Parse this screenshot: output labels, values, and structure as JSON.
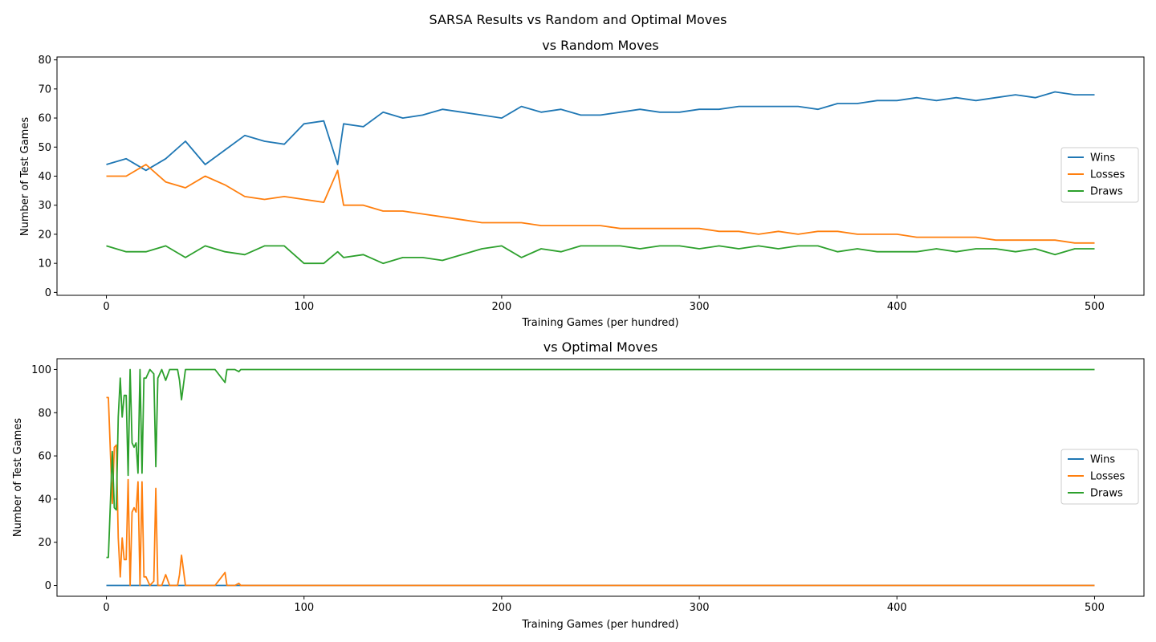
{
  "figure": {
    "suptitle": "SARSA Results vs Random and Optimal Moves"
  },
  "colors": {
    "wins": "#1f77b4",
    "losses": "#ff7f0e",
    "draws": "#2ca02c"
  },
  "chart_data": [
    {
      "type": "line",
      "title": "vs Random Moves",
      "xlabel": "Training Games (per hundred)",
      "ylabel": "Number of Test Games",
      "xlim": [
        -25,
        525
      ],
      "ylim": [
        -1,
        81
      ],
      "xticks": [
        0,
        100,
        200,
        300,
        400,
        500
      ],
      "yticks": [
        0,
        10,
        20,
        30,
        40,
        50,
        60,
        70,
        80
      ],
      "grid": false,
      "legend": "center right",
      "x": [
        0,
        10,
        20,
        30,
        40,
        50,
        60,
        70,
        80,
        90,
        100,
        110,
        117,
        120,
        130,
        140,
        150,
        160,
        170,
        180,
        190,
        200,
        210,
        220,
        230,
        240,
        250,
        260,
        270,
        280,
        290,
        300,
        310,
        320,
        330,
        340,
        350,
        360,
        370,
        380,
        390,
        400,
        410,
        420,
        430,
        440,
        450,
        460,
        470,
        480,
        490,
        500
      ],
      "series": [
        {
          "name": "Wins",
          "color": "#1f77b4",
          "values": [
            44,
            46,
            42,
            46,
            52,
            44,
            49,
            54,
            52,
            51,
            58,
            59,
            44,
            58,
            57,
            62,
            60,
            61,
            63,
            62,
            61,
            60,
            64,
            62,
            63,
            61,
            61,
            62,
            63,
            62,
            62,
            63,
            63,
            64,
            64,
            64,
            64,
            63,
            65,
            65,
            66,
            66,
            67,
            66,
            67,
            66,
            67,
            68,
            67,
            69,
            68,
            68
          ]
        },
        {
          "name": "Losses",
          "color": "#ff7f0e",
          "values": [
            40,
            40,
            44,
            38,
            36,
            40,
            37,
            33,
            32,
            33,
            32,
            31,
            42,
            30,
            30,
            28,
            28,
            27,
            26,
            25,
            24,
            24,
            24,
            23,
            23,
            23,
            23,
            22,
            22,
            22,
            22,
            22,
            21,
            21,
            20,
            21,
            20,
            21,
            21,
            20,
            20,
            20,
            19,
            19,
            19,
            19,
            18,
            18,
            18,
            18,
            17,
            17
          ]
        },
        {
          "name": "Draws",
          "color": "#2ca02c",
          "values": [
            16,
            14,
            14,
            16,
            12,
            16,
            14,
            13,
            16,
            16,
            10,
            10,
            14,
            12,
            13,
            10,
            12,
            12,
            11,
            13,
            15,
            16,
            12,
            15,
            14,
            16,
            16,
            16,
            15,
            16,
            16,
            15,
            16,
            15,
            16,
            15,
            16,
            16,
            14,
            15,
            14,
            14,
            14,
            15,
            14,
            15,
            15,
            14,
            15,
            13,
            15,
            15
          ]
        }
      ]
    },
    {
      "type": "line",
      "title": "vs Optimal Moves",
      "xlabel": "Training Games (per hundred)",
      "ylabel": "Number of Test Games",
      "xlim": [
        -25,
        525
      ],
      "ylim": [
        -5,
        105
      ],
      "xticks": [
        0,
        100,
        200,
        300,
        400,
        500
      ],
      "yticks": [
        0,
        20,
        40,
        60,
        80,
        100
      ],
      "grid": false,
      "legend": "center right",
      "x": [
        0,
        1,
        2,
        3,
        4,
        5,
        6,
        7,
        8,
        9,
        10,
        11,
        12,
        13,
        14,
        15,
        16,
        17,
        18,
        19,
        20,
        22,
        24,
        25,
        26,
        28,
        30,
        32,
        34,
        36,
        37,
        38,
        40,
        45,
        55,
        60,
        61,
        62,
        65,
        67,
        68,
        70,
        100,
        200,
        300,
        400,
        500
      ],
      "series": [
        {
          "name": "Wins",
          "color": "#1f77b4",
          "values": [
            0,
            0,
            0,
            0,
            0,
            0,
            0,
            0,
            0,
            0,
            0,
            0,
            0,
            0,
            0,
            0,
            0,
            0,
            0,
            0,
            0,
            0,
            0,
            0,
            0,
            0,
            0,
            0,
            0,
            0,
            0,
            0,
            0,
            0,
            0,
            0,
            0,
            0,
            0,
            0,
            0,
            0,
            0,
            0,
            0,
            0,
            0
          ]
        },
        {
          "name": "Losses",
          "color": "#ff7f0e",
          "values": [
            87,
            87,
            62,
            38,
            64,
            65,
            22,
            4,
            22,
            12,
            12,
            49,
            0,
            34,
            36,
            34,
            48,
            0,
            48,
            4,
            4,
            0,
            2,
            45,
            0,
            0,
            5,
            0,
            0,
            0,
            5,
            14,
            0,
            0,
            0,
            6,
            0,
            0,
            0,
            1,
            0,
            0,
            0,
            0,
            0,
            0,
            0
          ]
        },
        {
          "name": "Draws",
          "color": "#2ca02c",
          "values": [
            13,
            13,
            38,
            62,
            36,
            35,
            78,
            96,
            78,
            88,
            88,
            51,
            100,
            66,
            64,
            66,
            52,
            100,
            52,
            96,
            96,
            100,
            98,
            55,
            96,
            100,
            95,
            100,
            100,
            100,
            95,
            86,
            100,
            100,
            100,
            94,
            100,
            100,
            100,
            99,
            100,
            100,
            100,
            100,
            100,
            100,
            100
          ]
        }
      ]
    }
  ]
}
